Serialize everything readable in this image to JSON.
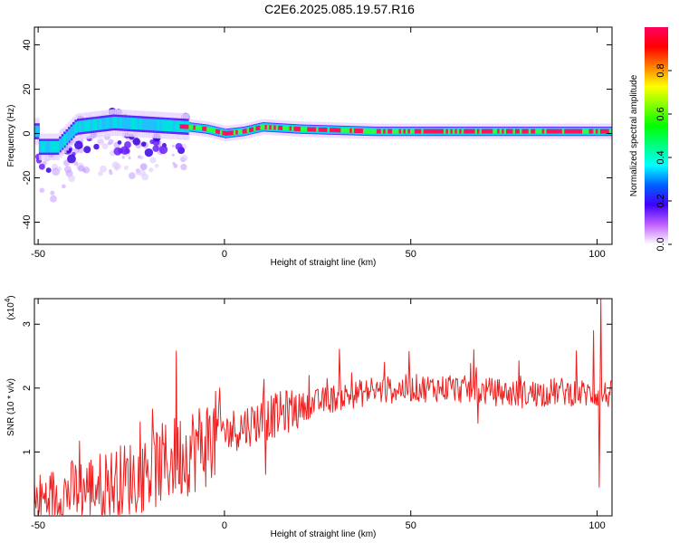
{
  "title": "C2E6.2025.085.19.57.R16",
  "chart_data": [
    {
      "type": "heatmap",
      "xlabel": "Height of straight line (km)",
      "ylabel": "Frequency (Hz)",
      "xlim": [
        -51,
        104
      ],
      "ylim": [
        -50,
        48
      ],
      "xticks": [
        -50,
        0,
        50,
        100
      ],
      "yticks": [
        40,
        20,
        0,
        -20,
        -40
      ],
      "colorbar": {
        "label": "Normalized spectral amplitude",
        "range": [
          0,
          1
        ],
        "ticks": [
          0.0,
          0.2,
          0.4,
          0.6,
          0.8
        ],
        "colors": [
          "#ffffff",
          "#c060ff",
          "#4000ff",
          "#0060ff",
          "#00ffff",
          "#00ff80",
          "#00ff00",
          "#80ff00",
          "#ffff00",
          "#ff8000",
          "#ff0000",
          "#ff0060"
        ]
      },
      "ridge": [
        {
          "x": -50,
          "y": -6
        },
        {
          "x": -45,
          "y": -6
        },
        {
          "x": -40,
          "y": 3
        },
        {
          "x": -30,
          "y": 5
        },
        {
          "x": -20,
          "y": 4
        },
        {
          "x": -10,
          "y": 3
        },
        {
          "x": -5,
          "y": 2
        },
        {
          "x": 0,
          "y": 0
        },
        {
          "x": 5,
          "y": 1
        },
        {
          "x": 10,
          "y": 3
        },
        {
          "x": 20,
          "y": 2
        },
        {
          "x": 40,
          "y": 1
        },
        {
          "x": 60,
          "y": 1
        },
        {
          "x": 80,
          "y": 1
        },
        {
          "x": 100,
          "y": 1
        },
        {
          "x": 104,
          "y": 1
        }
      ]
    },
    {
      "type": "line",
      "xlabel": "Height of straight line (km)",
      "ylabel": "SNR (10 * v/v)",
      "multiplier": "(x10",
      "multiplier_exp": "4",
      "multiplier_close": ")",
      "xlim": [
        -51,
        104
      ],
      "ylim": [
        0,
        3.4
      ],
      "xticks": [
        -50,
        0,
        50,
        100
      ],
      "yticks": [
        1,
        2,
        3
      ],
      "color": "#ee2020",
      "trend": [
        {
          "x": -51,
          "y": 0.2
        },
        {
          "x": -40,
          "y": 0.4
        },
        {
          "x": -30,
          "y": 0.5
        },
        {
          "x": -20,
          "y": 0.7
        },
        {
          "x": -10,
          "y": 1.0
        },
        {
          "x": 0,
          "y": 1.3
        },
        {
          "x": 10,
          "y": 1.5
        },
        {
          "x": 20,
          "y": 1.7
        },
        {
          "x": 30,
          "y": 1.85
        },
        {
          "x": 40,
          "y": 1.95
        },
        {
          "x": 50,
          "y": 2.0
        },
        {
          "x": 60,
          "y": 2.0
        },
        {
          "x": 70,
          "y": 1.95
        },
        {
          "x": 80,
          "y": 1.9
        },
        {
          "x": 90,
          "y": 1.95
        },
        {
          "x": 100,
          "y": 1.9
        },
        {
          "x": 104,
          "y": 1.9
        }
      ],
      "peaks": [
        {
          "x": -13,
          "y": 2.58
        },
        {
          "x": 11,
          "y": 2.25
        },
        {
          "x": 67,
          "y": 2.6
        },
        {
          "x": 99,
          "y": 2.9
        },
        {
          "x": 101,
          "y": 3.4
        },
        {
          "x": 100.5,
          "y": 0.45
        },
        {
          "x": 11,
          "y": 0.65
        },
        {
          "x": 68,
          "y": 1.45
        }
      ]
    }
  ]
}
